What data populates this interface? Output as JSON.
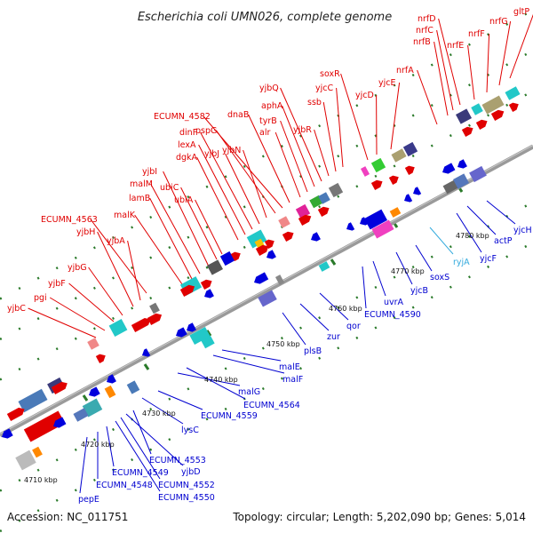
{
  "title": "Escherichia coli UMN026, complete genome",
  "footer": {
    "accession": "Accession: NC_011751",
    "stats": "Topology: circular; Length: 5,202,090 bp; Genes: 5,014"
  },
  "colors": {
    "forward_label": "#e00000",
    "reverse_label": "#0000d0",
    "rna_label": "#33aadd",
    "backbone": "#808080",
    "forward_gene": "#e00000",
    "reverse_gene": "#0000dd"
  },
  "scale_labels": [
    "4710 kbp",
    "4720 kbp",
    "4730 kbp",
    "4740 kbp",
    "4750 kbp",
    "4760 kbp",
    "4770 kbp",
    "4780 kbp"
  ],
  "forward_labels": [
    "yjbC",
    "pgi",
    "yjbF",
    "yjbG",
    "yjbH",
    "yjbA",
    "ECUMN_4563",
    "malK",
    "lamB",
    "malM",
    "yjbI",
    "ubiC",
    "ubiA",
    "dgkA",
    "lexA",
    "dinF",
    "yjbJ",
    "yjbN",
    "pspG",
    "ECUMN_4582",
    "dnaB",
    "alr",
    "tyrB",
    "aphA",
    "yjbQ",
    "yjbR",
    "ssb",
    "yjcC",
    "soxR",
    "yjcD",
    "yjcE",
    "nrfA",
    "nrfB",
    "nrfC",
    "nrfD",
    "nrfE",
    "nrfF",
    "nrfG",
    "gltP"
  ],
  "reverse_labels": [
    "pepE",
    "ECUMN_4548",
    "ECUMN_4549",
    "ECUMN_4550",
    "ECUMN_4552",
    "yjbD",
    "ECUMN_4553",
    "lysC",
    "ECUMN_4559",
    "malG",
    "ECUMN_4564",
    "malF",
    "malE",
    "plsB",
    "zur",
    "qor",
    "ECUMN_4590",
    "uvrA",
    "yjcB",
    "soxS",
    "actP",
    "yjcF",
    "yjcH"
  ],
  "rna_labels": [
    "ryjA"
  ]
}
